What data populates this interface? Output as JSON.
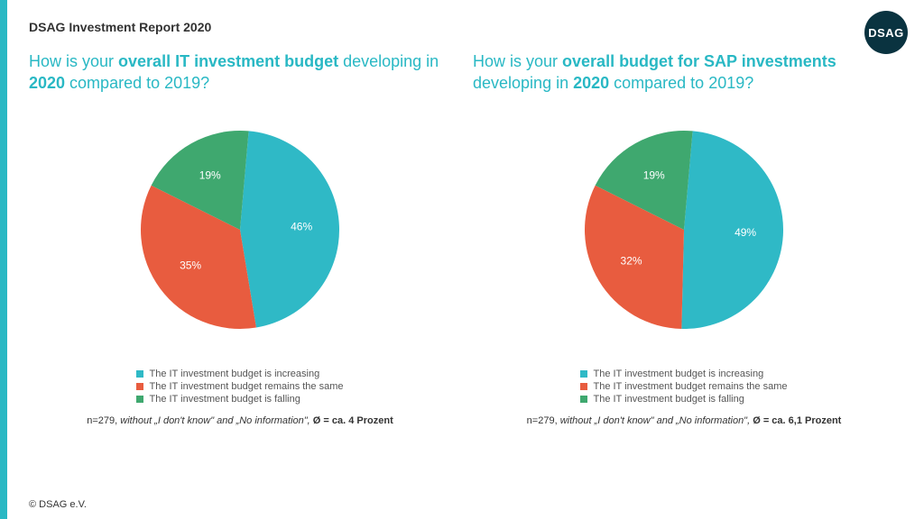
{
  "report_title": "DSAG Investment Report 2020",
  "logo_text": "DSAG",
  "logo_bg": "#0a3340",
  "accent_color": "#29b8c4",
  "copyright": "© DSAG e.V.",
  "background_color": "#ffffff",
  "charts": [
    {
      "title_pre": "How is your ",
      "title_bold1": "overall IT investment budget",
      "title_mid": " developing in ",
      "title_bold2": "2020",
      "title_post": " compared to 2019?",
      "type": "pie",
      "radius": 110,
      "start_angle_deg": 5,
      "slices": [
        {
          "label": "46%",
          "value": 46,
          "color": "#2fb9c6",
          "legend": "The IT investment budget is increasing"
        },
        {
          "label": "35%",
          "value": 35,
          "color": "#e85c3f",
          "legend": "The IT investment budget remains the same"
        },
        {
          "label": "19%",
          "value": 19,
          "color": "#3fa86f",
          "legend": "The IT investment budget is falling"
        }
      ],
      "footnote_pre": "n=279, ",
      "footnote_italic": "without „I don't know\" and „No information\", ",
      "footnote_bold": "Ø  = ca. 4 Prozent"
    },
    {
      "title_pre": "How is your ",
      "title_bold1": "overall budget for SAP investments",
      "title_mid": " developing in ",
      "title_bold2": "2020",
      "title_post": " compared to 2019?",
      "type": "pie",
      "radius": 110,
      "start_angle_deg": 5,
      "slices": [
        {
          "label": "49%",
          "value": 49,
          "color": "#2fb9c6",
          "legend": "The IT investment budget is increasing"
        },
        {
          "label": "32%",
          "value": 32,
          "color": "#e85c3f",
          "legend": "The IT investment budget remains the same"
        },
        {
          "label": "19%",
          "value": 19,
          "color": "#3fa86f",
          "legend": "The IT investment budget is falling"
        }
      ],
      "footnote_pre": "n=279, ",
      "footnote_italic": "without „I don't know\" and „No information\", ",
      "footnote_bold": "Ø  = ca. 6,1 Prozent"
    }
  ],
  "label_color": "#ffffff",
  "legend_text_color": "#555555",
  "title_fontsize_pt": 18,
  "legend_fontsize_pt": 11,
  "footnote_fontsize_pt": 11
}
